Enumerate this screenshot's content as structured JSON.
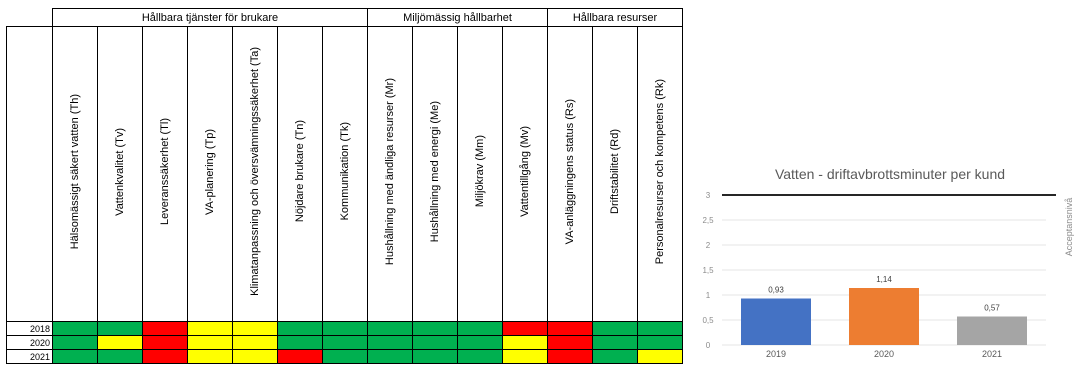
{
  "matrix": {
    "groups": [
      {
        "label": "Hållbara tjänster för brukare",
        "span": 7
      },
      {
        "label": "Miljömässig hållbarhet",
        "span": 4
      },
      {
        "label": "Hållbara resurser",
        "span": 3
      }
    ],
    "columns": [
      "Hälsomässigt säkert vatten (Th)",
      "Vattenkvalitet (Tv)",
      "Leveranssäkerhet (Tl)",
      "VA-planering (Tp)",
      "Klimatanpassning och översvämningssäkerhet (Ta)",
      "Nöjdare brukare (Tn)",
      "Kommunikation (Tk)",
      "Hushållning med ändliga resurser (Mr)",
      "Hushållning med energi (Me)",
      "Miljökrav (Mm)",
      "Vattentillgång (Mv)",
      "VA-anläggningens status (Rs)",
      "Driftstabilitet (Rd)",
      "Personalresurser och kompetens (Rk)"
    ],
    "rows": [
      {
        "year": "2018",
        "status": [
          "green",
          "green",
          "red",
          "yellow",
          "yellow",
          "green",
          "green",
          "green",
          "green",
          "green",
          "red",
          "red",
          "green",
          "green"
        ]
      },
      {
        "year": "2020",
        "status": [
          "green",
          "yellow",
          "red",
          "yellow",
          "yellow",
          "green",
          "green",
          "green",
          "green",
          "green",
          "yellow",
          "red",
          "green",
          "green"
        ]
      },
      {
        "year": "2021",
        "status": [
          "green",
          "green",
          "red",
          "yellow",
          "yellow",
          "red",
          "green",
          "green",
          "green",
          "green",
          "yellow",
          "red",
          "green",
          "yellow"
        ]
      }
    ],
    "colors": {
      "green": "#00b050",
      "yellow": "#ffff00",
      "red": "#ff0000"
    }
  },
  "chart_data": {
    "type": "bar",
    "title": "Vatten - driftavbrottsminuter per kund",
    "categories": [
      "2019",
      "2020",
      "2021"
    ],
    "values": [
      0.93,
      1.14,
      0.57
    ],
    "value_labels": [
      "0,93",
      "1,14",
      "0,57"
    ],
    "bar_colors": [
      "#4472c4",
      "#ed7d31",
      "#a5a5a5"
    ],
    "ylim": [
      0,
      3
    ],
    "yticks": [
      0,
      0.5,
      1,
      1.5,
      2,
      2.5,
      3
    ],
    "ytick_labels": [
      "0",
      "0,5",
      "1",
      "1,5",
      "2",
      "2,5",
      "3"
    ],
    "reference_line": {
      "value": 3,
      "label": "Acceptansnivå",
      "color": "#262626"
    },
    "grid": true
  }
}
